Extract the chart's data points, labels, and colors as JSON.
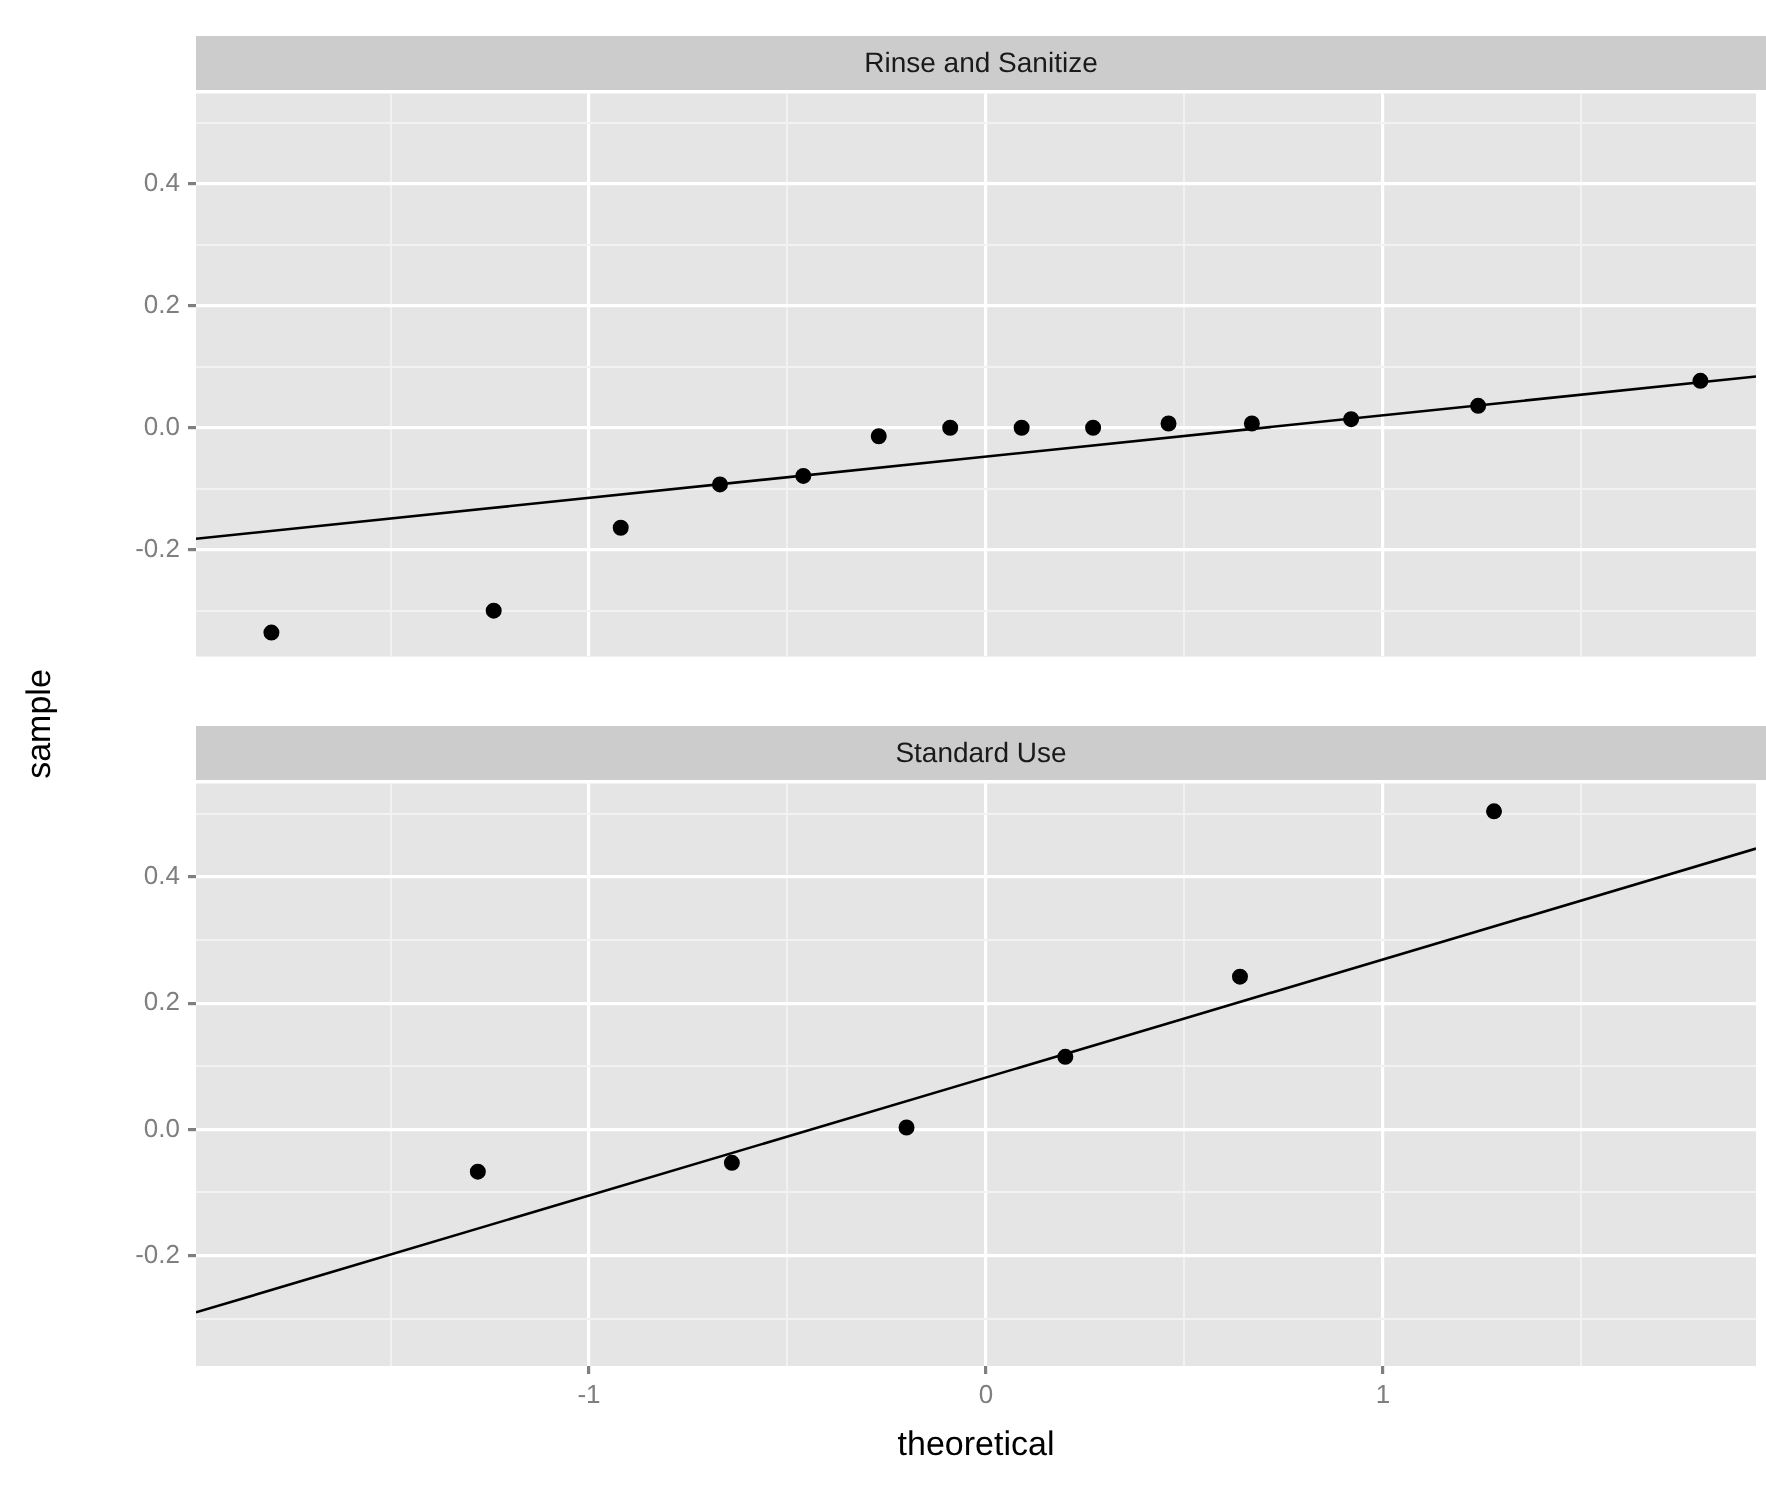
{
  "chart_data": [
    {
      "type": "scatter",
      "title": "Rinse and Sanitize",
      "ylabel": "sample",
      "xlim": [
        -1.99,
        1.94
      ],
      "ylim": [
        -0.375,
        0.548
      ],
      "tick_labels": "y",
      "grid": true,
      "marker": "circle",
      "xticks": [
        {
          "value": -1.5,
          "label": null
        },
        -1,
        {
          "value": -0.5,
          "label": null
        },
        0,
        {
          "value": 0.5,
          "label": null
        },
        1,
        {
          "value": 1.5,
          "label": null
        }
      ],
      "yticks": [
        {
          "value": -0.3,
          "label": null
        },
        {
          "value": -0.2,
          "label": "-0.2"
        },
        {
          "value": -0.1,
          "label": null
        },
        {
          "value": 0,
          "label": "0.0"
        },
        {
          "value": 0.1,
          "label": null
        },
        {
          "value": 0.2,
          "label": "0.2"
        },
        {
          "value": 0.3,
          "label": null
        },
        {
          "value": 0.4,
          "label": "0.4"
        },
        {
          "value": 0.5,
          "label": null
        }
      ],
      "series": [
        {
          "type": "scatter",
          "color": "#000000",
          "x": [
            -1.8,
            -1.24,
            -0.92,
            -0.67,
            -0.46,
            -0.27,
            -0.09,
            0.09,
            0.27,
            0.46,
            0.67,
            0.92,
            1.24,
            1.8
          ],
          "values": [
            -0.336,
            -0.3,
            -0.164,
            -0.093,
            -0.079,
            -0.014,
            0,
            0,
            0,
            0.007,
            0.007,
            0.014,
            0.036,
            0.077
          ]
        },
        {
          "type": "line",
          "color": "#000000",
          "marker": "none",
          "x": [
            -1.99,
            1.94
          ],
          "values": [
            -0.182,
            0.084
          ]
        }
      ]
    },
    {
      "type": "scatter",
      "title": "Standard Use",
      "xlabel": "theoretical",
      "xlim": [
        -1.99,
        1.94
      ],
      "ylim": [
        -0.375,
        0.548
      ],
      "grid": true,
      "marker": "circle",
      "xticks": [
        {
          "value": -1.5,
          "label": null
        },
        -1,
        {
          "value": -0.5,
          "label": null
        },
        0,
        {
          "value": 0.5,
          "label": null
        },
        1,
        {
          "value": 1.5,
          "label": null
        }
      ],
      "yticks": [
        {
          "value": -0.3,
          "label": null
        },
        {
          "value": -0.2,
          "label": "-0.2"
        },
        {
          "value": -0.1,
          "label": null
        },
        {
          "value": 0,
          "label": "0.0"
        },
        {
          "value": 0.1,
          "label": null
        },
        {
          "value": 0.2,
          "label": "0.2"
        },
        {
          "value": 0.3,
          "label": null
        },
        {
          "value": 0.4,
          "label": "0.4"
        },
        {
          "value": 0.5,
          "label": null
        }
      ],
      "series": [
        {
          "type": "scatter",
          "color": "#000000",
          "x": [
            -1.28,
            -0.64,
            -0.2,
            0.2,
            0.64,
            1.28
          ],
          "values": [
            -0.067,
            -0.053,
            0.003,
            0.115,
            0.242,
            0.504
          ]
        },
        {
          "type": "line",
          "color": "#000000",
          "marker": "none",
          "x": [
            -1.99,
            1.94
          ],
          "values": [
            -0.29,
            0.445
          ]
        }
      ]
    }
  ]
}
